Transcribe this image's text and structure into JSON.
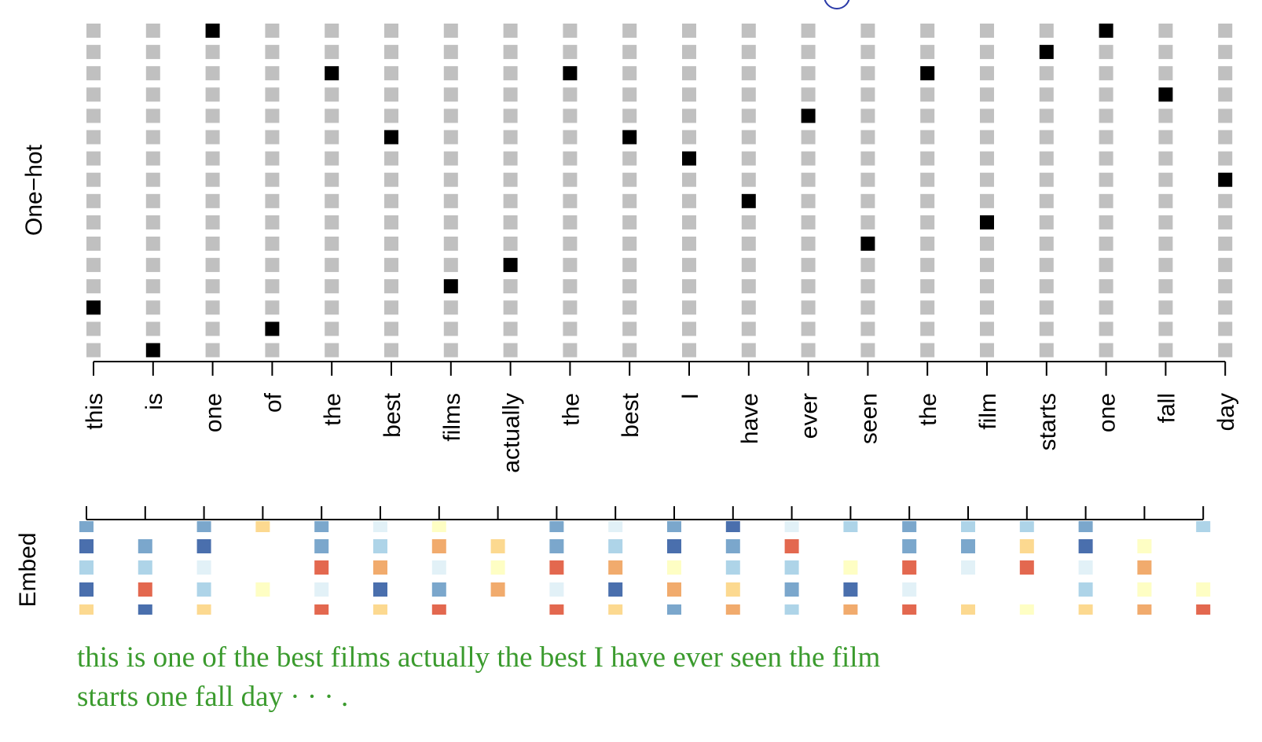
{
  "tokens": [
    "this",
    "is",
    "one",
    "of",
    "the",
    "best",
    "films",
    "actually",
    "the",
    "best",
    "I",
    "have",
    "ever",
    "seen",
    "the",
    "film",
    "starts",
    "one",
    "fall",
    "day"
  ],
  "onehot": {
    "title": "One−hot",
    "rows": 16,
    "hot_row_from_top": [
      13,
      15,
      0,
      14,
      2,
      5,
      12,
      11,
      2,
      5,
      6,
      8,
      4,
      10,
      2,
      9,
      1,
      0,
      3,
      7
    ],
    "colors": {
      "off": "#c0c0c0",
      "on": "#000000"
    }
  },
  "embed": {
    "title": "Embed",
    "rows": 5,
    "palette": [
      "#4a6fad",
      "#7ba7cc",
      "#aed4e8",
      "#e2f1f7",
      "#fefec4",
      "#fcd990",
      "#f1ab6d",
      "#e3684f"
    ],
    "cells": [
      [
        1,
        -1,
        1,
        5,
        1,
        3,
        4,
        -1,
        1,
        3,
        1,
        0,
        3,
        2,
        1,
        2,
        2,
        1,
        -1,
        2
      ],
      [
        0,
        1,
        0,
        -1,
        1,
        2,
        6,
        5,
        1,
        2,
        0,
        1,
        7,
        -1,
        1,
        1,
        5,
        0,
        4,
        -1
      ],
      [
        2,
        2,
        3,
        -1,
        7,
        6,
        3,
        4,
        7,
        6,
        4,
        2,
        2,
        4,
        7,
        3,
        7,
        3,
        6,
        -1
      ],
      [
        0,
        7,
        2,
        4,
        3,
        0,
        1,
        6,
        3,
        0,
        6,
        5,
        1,
        0,
        3,
        -1,
        -1,
        2,
        4,
        4
      ],
      [
        5,
        0,
        5,
        -1,
        7,
        5,
        7,
        -1,
        7,
        5,
        1,
        6,
        2,
        6,
        7,
        5,
        4,
        5,
        6,
        7
      ]
    ]
  },
  "caption": {
    "line1": "this is one of the best films actually the best I have ever seen the film",
    "line2": "starts one fall day · · · ."
  }
}
